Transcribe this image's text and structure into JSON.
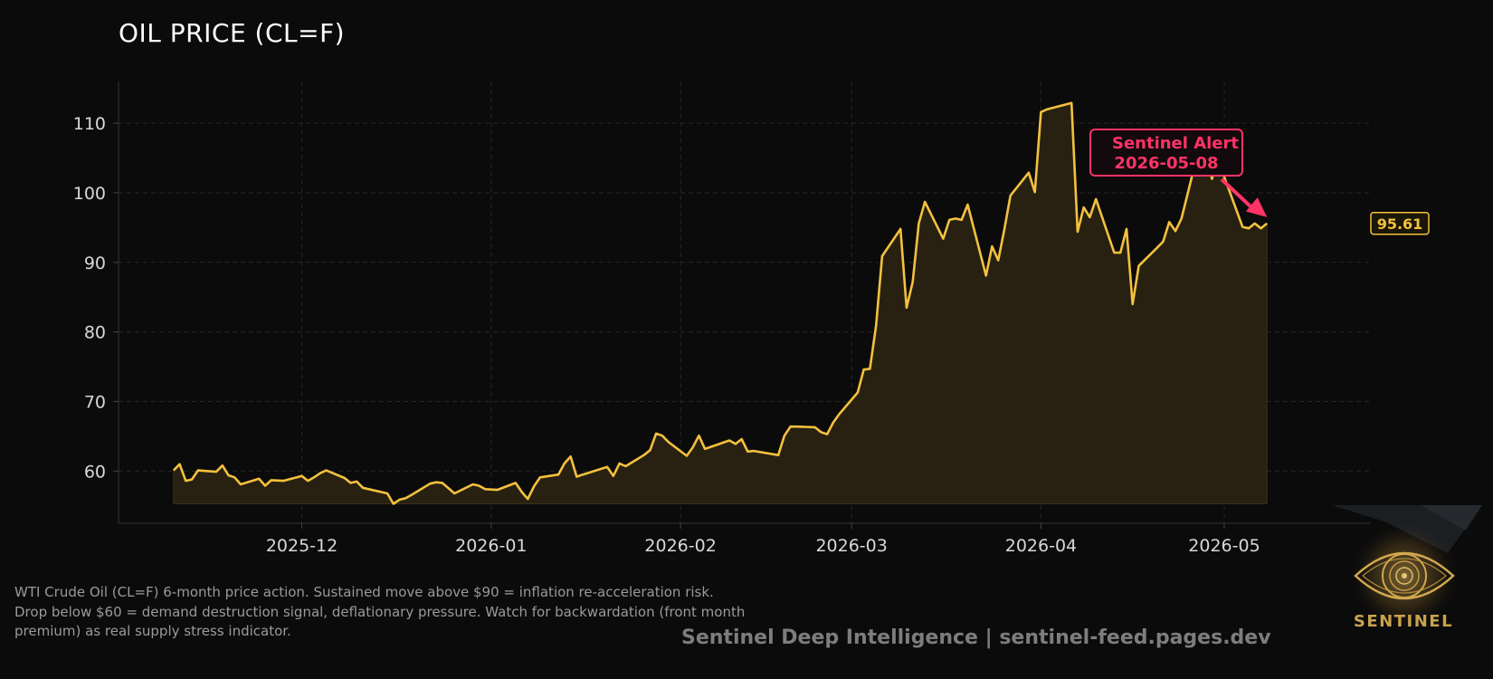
{
  "title": "OIL PRICE (CL=F)",
  "description": [
    "WTI Crude Oil (CL=F) 6-month price action. Sustained move above $90 = inflation re-acceleration risk.",
    "Drop below $60 = demand destruction signal, deflationary pressure. Watch for backwardation (front month",
    "premium) as real supply stress indicator."
  ],
  "footer": "Sentinel Deep Intelligence  |  sentinel-feed.pages.dev",
  "logo_text": "SENTINEL",
  "colors": {
    "background": "#0b0b0b",
    "line": "#f4c13e",
    "fill": "#2a2312",
    "alert": "#ff3366",
    "grid": "#262626",
    "tick_text": "#d8d8d8",
    "last_price": "#f4c13e"
  },
  "chart_data": {
    "type": "area",
    "title": "OIL PRICE (CL=F)",
    "xlabel": "",
    "ylabel": "",
    "ylim": [
      52.5,
      116
    ],
    "xlim": [
      "2025-11-01",
      "2026-05-25"
    ],
    "grid": true,
    "yticks": [
      60,
      70,
      80,
      90,
      100,
      110
    ],
    "xticks": [
      "2025-12",
      "2026-01",
      "2026-02",
      "2026-03",
      "2026-04",
      "2026-05"
    ],
    "last_value_label": "95.61",
    "annotation": {
      "text": [
        "Sentinel Alert",
        "2026-05-08"
      ],
      "date": "2026-05-08",
      "value": 96.5
    },
    "x": [
      "2025-11-10",
      "2025-11-11",
      "2025-11-12",
      "2025-11-13",
      "2025-11-14",
      "2025-11-17",
      "2025-11-18",
      "2025-11-19",
      "2025-11-20",
      "2025-11-21",
      "2025-11-24",
      "2025-11-25",
      "2025-11-26",
      "2025-11-28",
      "2025-12-01",
      "2025-12-02",
      "2025-12-03",
      "2025-12-04",
      "2025-12-05",
      "2025-12-08",
      "2025-12-09",
      "2025-12-10",
      "2025-12-11",
      "2025-12-15",
      "2025-12-16",
      "2025-12-17",
      "2025-12-18",
      "2025-12-19",
      "2025-12-22",
      "2025-12-23",
      "2025-12-24",
      "2025-12-26",
      "2025-12-29",
      "2025-12-30",
      "2025-12-31",
      "2026-01-02",
      "2026-01-05",
      "2026-01-06",
      "2026-01-07",
      "2026-01-08",
      "2026-01-09",
      "2026-01-12",
      "2026-01-13",
      "2026-01-14",
      "2026-01-15",
      "2026-01-16",
      "2026-01-20",
      "2026-01-21",
      "2026-01-22",
      "2026-01-23",
      "2026-01-26",
      "2026-01-27",
      "2026-01-28",
      "2026-01-29",
      "2026-01-30",
      "2026-02-02",
      "2026-02-03",
      "2026-02-04",
      "2026-02-05",
      "2026-02-06",
      "2026-02-09",
      "2026-02-10",
      "2026-02-11",
      "2026-02-12",
      "2026-02-13",
      "2026-02-17",
      "2026-02-18",
      "2026-02-19",
      "2026-02-20",
      "2026-02-23",
      "2026-02-24",
      "2026-02-25",
      "2026-02-26",
      "2026-02-27",
      "2026-03-02",
      "2026-03-03",
      "2026-03-04",
      "2026-03-05",
      "2026-03-06",
      "2026-03-09",
      "2026-03-10",
      "2026-03-11",
      "2026-03-12",
      "2026-03-13",
      "2026-03-16",
      "2026-03-17",
      "2026-03-18",
      "2026-03-19",
      "2026-03-20",
      "2026-03-23",
      "2026-03-24",
      "2026-03-25",
      "2026-03-26",
      "2026-03-27",
      "2026-03-30",
      "2026-03-31",
      "2026-04-01",
      "2026-04-02",
      "2026-04-06",
      "2026-04-07",
      "2026-04-08",
      "2026-04-09",
      "2026-04-10",
      "2026-04-13",
      "2026-04-14",
      "2026-04-15",
      "2026-04-16",
      "2026-04-17",
      "2026-04-20",
      "2026-04-21",
      "2026-04-22",
      "2026-04-23",
      "2026-04-24",
      "2026-04-27",
      "2026-04-28",
      "2026-04-29",
      "2026-04-30",
      "2026-05-01",
      "2026-05-04",
      "2026-05-05",
      "2026-05-06",
      "2026-05-07",
      "2026-05-08"
    ],
    "series": [
      {
        "values": [
          60.1,
          61.0,
          58.6,
          58.8,
          60.1,
          59.9,
          60.8,
          59.4,
          59.1,
          58.1,
          58.9,
          57.9,
          58.7,
          58.6,
          59.3,
          58.6,
          59.1,
          59.7,
          60.1,
          59.0,
          58.3,
          58.5,
          57.6,
          56.8,
          55.3,
          55.9,
          56.1,
          56.6,
          58.2,
          58.4,
          58.3,
          56.8,
          58.1,
          57.9,
          57.4,
          57.3,
          58.3,
          57.0,
          56.0,
          57.8,
          59.1,
          59.5,
          61.1,
          62.1,
          59.2,
          59.5,
          60.6,
          59.3,
          61.1,
          60.7,
          62.3,
          63.0,
          65.4,
          65.1,
          64.2,
          62.2,
          63.4,
          65.1,
          63.2,
          63.5,
          64.4,
          63.9,
          64.6,
          62.8,
          62.9,
          62.3,
          65.1,
          66.4,
          66.4,
          66.3,
          65.6,
          65.3,
          67.0,
          68.2,
          71.3,
          74.6,
          74.7,
          80.9,
          90.9,
          94.8,
          83.5,
          87.2,
          95.6,
          98.7,
          93.4,
          96.1,
          96.3,
          96.1,
          98.3,
          88.1,
          92.3,
          90.3,
          94.7,
          99.6,
          102.9,
          100.1,
          111.6,
          112.0,
          112.9,
          94.4,
          97.9,
          96.5,
          99.1,
          91.4,
          91.4,
          94.8,
          84.0,
          89.5,
          92.1,
          93.0,
          95.8,
          94.5,
          96.3,
          106.9,
          105.1,
          102.0,
          106.4,
          102.3,
          95.1,
          94.9,
          95.6,
          94.9,
          95.6
        ]
      }
    ]
  }
}
